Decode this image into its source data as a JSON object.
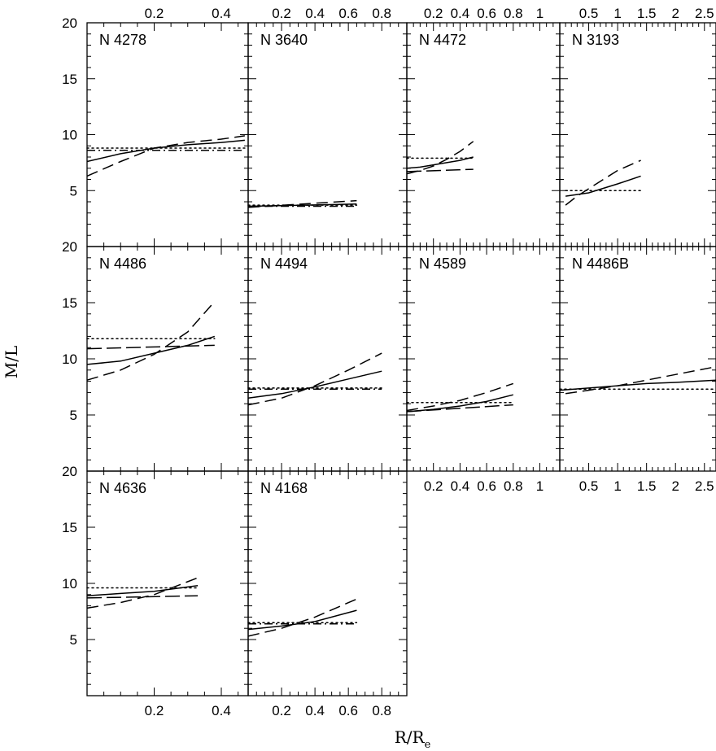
{
  "figure": {
    "ylabel": "M/L",
    "xlabel": "R/R",
    "xlabel_sub": "e"
  },
  "chart_data": [
    {
      "type": "line",
      "title": "N 4278",
      "ylim": [
        0,
        20
      ],
      "yticks": [
        5,
        10,
        15,
        20
      ],
      "xlim": [
        0,
        0.48
      ],
      "xticks": [
        0.2,
        0.4
      ],
      "xtick_labels": [
        "0.2",
        "0.4"
      ],
      "series": [
        {
          "style": "solid",
          "x": [
            0,
            0.1,
            0.2,
            0.3,
            0.4,
            0.47
          ],
          "y": [
            7.6,
            8.3,
            8.8,
            9.1,
            9.3,
            9.5
          ]
        },
        {
          "style": "dashed",
          "x": [
            0,
            0.1,
            0.2,
            0.3,
            0.4,
            0.47
          ],
          "y": [
            6.3,
            7.6,
            8.8,
            9.3,
            9.6,
            9.9
          ]
        },
        {
          "style": "dotted",
          "x": [
            0,
            0.47
          ],
          "y": [
            8.8,
            8.8
          ]
        },
        {
          "style": "dashdot",
          "x": [
            0,
            0.47
          ],
          "y": [
            8.6,
            8.6
          ]
        }
      ]
    },
    {
      "type": "line",
      "title": "N 3640",
      "ylim": [
        0,
        20
      ],
      "yticks": [
        5,
        10,
        15,
        20
      ],
      "xlim": [
        0,
        0.95
      ],
      "xticks": [
        0.2,
        0.4,
        0.6,
        0.8
      ],
      "xtick_labels": [
        "0.2",
        "0.4",
        "0.6",
        "0.8"
      ],
      "series": [
        {
          "style": "solid",
          "x": [
            0,
            0.65
          ],
          "y": [
            3.6,
            3.8
          ]
        },
        {
          "style": "dashed",
          "x": [
            0,
            0.65
          ],
          "y": [
            3.5,
            4.1
          ]
        },
        {
          "style": "dotted",
          "x": [
            0,
            0.65
          ],
          "y": [
            3.7,
            3.7
          ]
        },
        {
          "style": "dashdot",
          "x": [
            0,
            0.65
          ],
          "y": [
            3.6,
            3.6
          ]
        }
      ]
    },
    {
      "type": "line",
      "title": "N 4472",
      "ylim": [
        0,
        20
      ],
      "yticks": [
        5,
        10,
        15,
        20
      ],
      "xlim": [
        0,
        1.15
      ],
      "xticks": [
        0.2,
        0.4,
        0.6,
        0.8,
        1
      ],
      "xtick_labels": [
        "0.2",
        "0.4",
        "0.6",
        "0.8",
        "1"
      ],
      "series": [
        {
          "style": "solid",
          "x": [
            0,
            0.1,
            0.2,
            0.3,
            0.4,
            0.5
          ],
          "y": [
            7.0,
            7.1,
            7.3,
            7.5,
            7.7,
            8.0
          ]
        },
        {
          "style": "dashed",
          "x": [
            0,
            0.1,
            0.2,
            0.3,
            0.4,
            0.5
          ],
          "y": [
            6.5,
            6.8,
            7.2,
            7.8,
            8.5,
            9.4
          ]
        },
        {
          "style": "dotted",
          "x": [
            0,
            0.5
          ],
          "y": [
            7.9,
            7.9
          ]
        },
        {
          "style": "longdash",
          "x": [
            0,
            0.5
          ],
          "y": [
            6.7,
            6.9
          ]
        }
      ]
    },
    {
      "type": "line",
      "title": "N 3193",
      "ylim": [
        0,
        20
      ],
      "yticks": [
        5,
        10,
        15,
        20
      ],
      "xlim": [
        0,
        2.7
      ],
      "xticks": [
        0.5,
        1,
        1.5,
        2,
        2.5
      ],
      "xtick_labels": [
        "0.5",
        "1",
        "1.5",
        "2",
        "2.5"
      ],
      "series": [
        {
          "style": "solid",
          "x": [
            0.1,
            0.5,
            1.0,
            1.4
          ],
          "y": [
            4.5,
            4.8,
            5.6,
            6.3
          ]
        },
        {
          "style": "dashed",
          "x": [
            0.1,
            0.3,
            0.6,
            1.0,
            1.4
          ],
          "y": [
            3.7,
            4.5,
            5.5,
            6.8,
            7.7
          ]
        },
        {
          "style": "dotted",
          "x": [
            0.1,
            1.4
          ],
          "y": [
            5.0,
            5.0
          ]
        }
      ]
    },
    {
      "type": "line",
      "title": "N 4486",
      "ylim": [
        0,
        20
      ],
      "yticks": [
        5,
        10,
        15,
        20
      ],
      "xlim": [
        0,
        0.48
      ],
      "xticks": [
        0.2,
        0.4
      ],
      "xtick_labels": [
        "",
        ""
      ],
      "series": [
        {
          "style": "solid",
          "x": [
            0,
            0.1,
            0.2,
            0.3,
            0.38
          ],
          "y": [
            9.5,
            9.8,
            10.5,
            11.2,
            12.0
          ]
        },
        {
          "style": "dashed",
          "x": [
            0,
            0.1,
            0.2,
            0.3,
            0.38
          ],
          "y": [
            8.1,
            9.0,
            10.4,
            12.4,
            15.1
          ]
        },
        {
          "style": "dotted",
          "x": [
            0,
            0.38
          ],
          "y": [
            11.8,
            11.8
          ]
        },
        {
          "style": "longdash",
          "x": [
            0,
            0.38
          ],
          "y": [
            10.9,
            11.2
          ]
        }
      ]
    },
    {
      "type": "line",
      "title": "N 4494",
      "ylim": [
        0,
        20
      ],
      "yticks": [
        5,
        10,
        15,
        20
      ],
      "xlim": [
        0,
        0.95
      ],
      "xticks": [
        0.2,
        0.4,
        0.6,
        0.8
      ],
      "xtick_labels": [
        "",
        "",
        "",
        ""
      ],
      "series": [
        {
          "style": "solid",
          "x": [
            0,
            0.2,
            0.4,
            0.6,
            0.8
          ],
          "y": [
            6.5,
            6.9,
            7.5,
            8.2,
            8.9
          ]
        },
        {
          "style": "dashed",
          "x": [
            0,
            0.2,
            0.4,
            0.6,
            0.8
          ],
          "y": [
            5.9,
            6.5,
            7.6,
            9.0,
            10.5
          ]
        },
        {
          "style": "dotted",
          "x": [
            0,
            0.8
          ],
          "y": [
            7.4,
            7.4
          ]
        },
        {
          "style": "dashdot",
          "x": [
            0,
            0.8
          ],
          "y": [
            7.3,
            7.3
          ]
        }
      ]
    },
    {
      "type": "line",
      "title": "N 4589",
      "ylim": [
        0,
        20
      ],
      "yticks": [
        5,
        10,
        15,
        20
      ],
      "xlim": [
        0,
        1.15
      ],
      "xticks": [
        0.2,
        0.4,
        0.6,
        0.8,
        1
      ],
      "xtick_labels": [
        "0.2",
        "0.4",
        "0.6",
        "0.8",
        "1"
      ],
      "series": [
        {
          "style": "solid",
          "x": [
            0,
            0.2,
            0.4,
            0.6,
            0.8
          ],
          "y": [
            5.3,
            5.5,
            5.8,
            6.2,
            6.8
          ]
        },
        {
          "style": "dashed",
          "x": [
            0,
            0.2,
            0.4,
            0.6,
            0.8
          ],
          "y": [
            5.4,
            5.8,
            6.3,
            7.0,
            7.8
          ]
        },
        {
          "style": "dotted",
          "x": [
            0,
            0.8
          ],
          "y": [
            6.1,
            6.1
          ]
        },
        {
          "style": "longdash",
          "x": [
            0,
            0.8
          ],
          "y": [
            5.3,
            5.9
          ]
        }
      ]
    },
    {
      "type": "line",
      "title": "N 4486B",
      "ylim": [
        0,
        20
      ],
      "yticks": [
        5,
        10,
        15,
        20
      ],
      "xlim": [
        0,
        2.7
      ],
      "xticks": [
        0.5,
        1,
        1.5,
        2,
        2.5
      ],
      "xtick_labels": [
        "0.5",
        "1",
        "1.5",
        "2",
        "2.5"
      ],
      "series": [
        {
          "style": "solid",
          "x": [
            0,
            0.5,
            1.0,
            1.5,
            2.0,
            2.7
          ],
          "y": [
            7.2,
            7.4,
            7.6,
            7.8,
            7.9,
            8.1
          ]
        },
        {
          "style": "dashed",
          "x": [
            0.1,
            0.5,
            1.0,
            1.5,
            2.0,
            2.7
          ],
          "y": [
            6.9,
            7.2,
            7.6,
            8.1,
            8.6,
            9.3
          ]
        },
        {
          "style": "dotted",
          "x": [
            0,
            2.7
          ],
          "y": [
            7.3,
            7.3
          ]
        }
      ]
    },
    {
      "type": "line",
      "title": "N 4636",
      "ylim": [
        0,
        20
      ],
      "yticks": [
        5,
        10,
        15,
        20
      ],
      "xlim": [
        0,
        0.48
      ],
      "xticks": [
        0.2,
        0.4
      ],
      "xtick_labels": [
        "0.2",
        "0.4"
      ],
      "series": [
        {
          "style": "solid",
          "x": [
            0,
            0.1,
            0.2,
            0.33
          ],
          "y": [
            8.9,
            9.1,
            9.3,
            9.8
          ]
        },
        {
          "style": "dashed",
          "x": [
            0,
            0.1,
            0.2,
            0.33
          ],
          "y": [
            7.8,
            8.3,
            9.0,
            10.5
          ]
        },
        {
          "style": "dotted",
          "x": [
            0,
            0.33
          ],
          "y": [
            9.6,
            9.6
          ]
        },
        {
          "style": "longdash",
          "x": [
            0,
            0.33
          ],
          "y": [
            8.7,
            8.9
          ]
        }
      ]
    },
    {
      "type": "line",
      "title": "N 4168",
      "ylim": [
        0,
        20
      ],
      "yticks": [
        5,
        10,
        15,
        20
      ],
      "xlim": [
        0,
        0.95
      ],
      "xticks": [
        0.2,
        0.4,
        0.6,
        0.8
      ],
      "xtick_labels": [
        "0.2",
        "0.4",
        "0.6",
        "0.8"
      ],
      "series": [
        {
          "style": "solid",
          "x": [
            0,
            0.2,
            0.4,
            0.65
          ],
          "y": [
            5.9,
            6.2,
            6.6,
            7.6
          ]
        },
        {
          "style": "dashed",
          "x": [
            0,
            0.2,
            0.4,
            0.65
          ],
          "y": [
            5.3,
            6.0,
            7.0,
            8.6
          ]
        },
        {
          "style": "dotted",
          "x": [
            0,
            0.65
          ],
          "y": [
            6.5,
            6.5
          ]
        },
        {
          "style": "dashdot",
          "x": [
            0,
            0.65
          ],
          "y": [
            6.4,
            6.4
          ]
        }
      ]
    }
  ]
}
